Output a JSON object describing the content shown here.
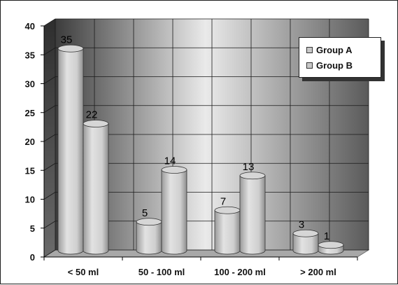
{
  "chart_data": {
    "type": "bar",
    "categories": [
      "< 50 ml",
      "50 - 100 ml",
      "100 - 200 ml",
      "> 200 ml"
    ],
    "series": [
      {
        "name": "Group A",
        "values": [
          35,
          5,
          7,
          3
        ]
      },
      {
        "name": "Group B",
        "values": [
          22,
          14,
          13,
          1
        ]
      }
    ],
    "ylim": [
      0,
      40
    ],
    "yticks": [
      0,
      5,
      10,
      15,
      20,
      25,
      30,
      35,
      40
    ],
    "title": "",
    "xlabel": "",
    "ylabel": "",
    "grid": true,
    "legend_position": "top-right",
    "bar_style": "3d-cylinder",
    "colors": {
      "bar": "#c8c8c8",
      "wall_dark": "#4a4a4a",
      "wall_light": "#e4e4e4",
      "floor": "#a8a8a8",
      "gridline": "#1a1a1a"
    }
  }
}
